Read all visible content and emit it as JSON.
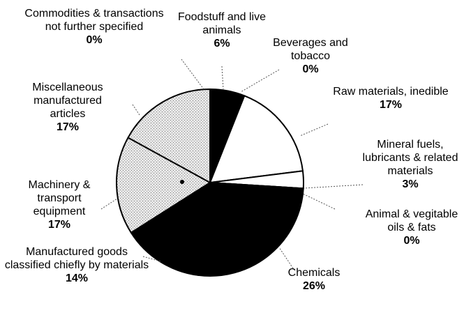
{
  "chart_data": {
    "type": "pie",
    "categories": [
      "Foodstuff and live animals",
      "Beverages and tobacco",
      "Raw materials, inedible",
      "Mineral fuels, lubricants & related materials",
      "Animal & vegitable oils & fats",
      "Chemicals",
      "Manufactured goods classified chiefly by materials",
      "Machinery & transport equipment",
      "Miscellaneous manufactured articles",
      "Commodities & transactions not further specified"
    ],
    "values": [
      6,
      0,
      17,
      3,
      0,
      26,
      14,
      17,
      17,
      0
    ],
    "value_labels": [
      "6%",
      "0%",
      "17%",
      "3%",
      "0%",
      "26%",
      "14%",
      "17%",
      "17%",
      "0%"
    ],
    "colors": [
      "#000000",
      "#000000",
      "#ffffff",
      "#ffffff",
      "#000000",
      "#000000",
      "#000000",
      "#d4d4d4",
      "#d4d4d4",
      "#000000"
    ]
  }
}
